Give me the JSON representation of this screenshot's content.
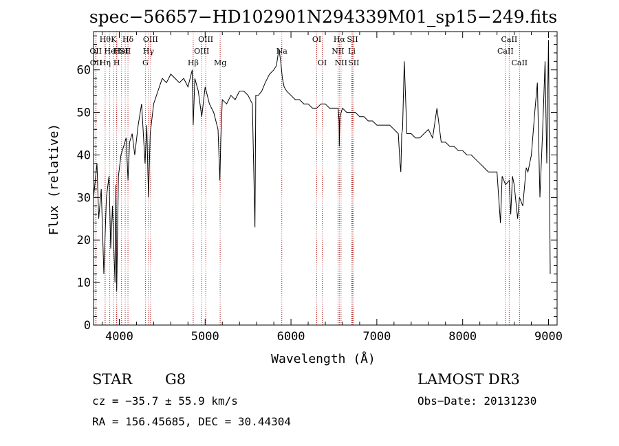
{
  "chart_data": {
    "type": "line",
    "title": "spec−56657−HD102901N294339M01_sp15−249.fits",
    "xlabel": "Wavelength (Å)",
    "ylabel": "Flux (relative)",
    "xlim": [
      3700,
      9100
    ],
    "ylim": [
      0,
      69
    ],
    "xticks": [
      4000,
      5000,
      6000,
      7000,
      8000,
      9000
    ],
    "yticks": [
      0,
      10,
      20,
      30,
      40,
      50,
      60
    ],
    "grid": false,
    "series": [
      {
        "color": "#000000",
        "x": [
          3700,
          3740,
          3760,
          3790,
          3820,
          3850,
          3880,
          3900,
          3920,
          3950,
          3960,
          3970,
          3990,
          4020,
          4050,
          4080,
          4101,
          4120,
          4150,
          4180,
          4220,
          4260,
          4300,
          4320,
          4340,
          4360,
          4400,
          4450,
          4500,
          4550,
          4600,
          4650,
          4700,
          4750,
          4800,
          4850,
          4861,
          4880,
          4920,
          4960,
          5000,
          5050,
          5100,
          5150,
          5172,
          5183,
          5200,
          5250,
          5300,
          5350,
          5400,
          5450,
          5500,
          5550,
          5580,
          5590,
          5620,
          5660,
          5700,
          5750,
          5800,
          5830,
          5860,
          5880,
          5890,
          5900,
          5920,
          5950,
          6000,
          6050,
          6100,
          6150,
          6200,
          6250,
          6300,
          6350,
          6400,
          6450,
          6500,
          6550,
          6560,
          6563,
          6570,
          6600,
          6650,
          6700,
          6750,
          6800,
          6850,
          6900,
          6950,
          7000,
          7050,
          7100,
          7150,
          7200,
          7250,
          7270,
          7280,
          7290,
          7300,
          7320,
          7350,
          7400,
          7450,
          7500,
          7550,
          7600,
          7650,
          7700,
          7750,
          7800,
          7850,
          7900,
          7950,
          8000,
          8050,
          8100,
          8150,
          8200,
          8250,
          8300,
          8350,
          8400,
          8420,
          8440,
          8460,
          8500,
          8542,
          8560,
          8580,
          8600,
          8640,
          8662,
          8700,
          8740,
          8760,
          8800,
          8840,
          8870,
          8900,
          8930,
          8960,
          8980,
          9000,
          9020
        ],
        "y": [
          30,
          38,
          25,
          32,
          12,
          30,
          35,
          18,
          28,
          10,
          33,
          8,
          35,
          40,
          42,
          44,
          34,
          43,
          45,
          40,
          47,
          52,
          38,
          47,
          30,
          45,
          52,
          55,
          58,
          57,
          59,
          58,
          57,
          58,
          56,
          60,
          47,
          58,
          55,
          49,
          56,
          52,
          50,
          46,
          34,
          44,
          53,
          52,
          54,
          53,
          55,
          55,
          54,
          52,
          23,
          54,
          54,
          55,
          57,
          59,
          60,
          61,
          65,
          62,
          60,
          58,
          56,
          55,
          54,
          53,
          53,
          52,
          52,
          51,
          51,
          52,
          52,
          51,
          51,
          51,
          48,
          42,
          49,
          51,
          50,
          50,
          50,
          49,
          49,
          48,
          48,
          47,
          47,
          47,
          47,
          46,
          45,
          38,
          36,
          45,
          46,
          62,
          45,
          45,
          44,
          44,
          45,
          46,
          44,
          51,
          43,
          43,
          42,
          42,
          41,
          41,
          40,
          40,
          39,
          38,
          37,
          36,
          36,
          36,
          30,
          24,
          35,
          33,
          34,
          26,
          35,
          33,
          25,
          30,
          28,
          37,
          36,
          40,
          50,
          57,
          30,
          45,
          62,
          38,
          67,
          12
        ]
      }
    ],
    "line_labels": [
      {
        "wavelength": 3835,
        "row": 0,
        "text": "Hθ"
      },
      {
        "wavelength": 3934,
        "row": 0,
        "text": "K"
      },
      {
        "wavelength": 4101,
        "row": 0,
        "text": "Hδ"
      },
      {
        "wavelength": 4364,
        "row": 0,
        "text": "OIII"
      },
      {
        "wavelength": 5007,
        "row": 0,
        "text": "OIII"
      },
      {
        "wavelength": 6300,
        "row": 0,
        "text": "OI"
      },
      {
        "wavelength": 6563,
        "row": 0,
        "text": "Hα"
      },
      {
        "wavelength": 6716,
        "row": 0,
        "text": "SII"
      },
      {
        "wavelength": 8542,
        "row": 0,
        "text": "CaII"
      },
      {
        "wavelength": 3726,
        "row": 1,
        "text": "OII"
      },
      {
        "wavelength": 3889,
        "row": 1,
        "text": "He"
      },
      {
        "wavelength": 3968,
        "row": 1,
        "text": "H"
      },
      {
        "wavelength": 4026,
        "row": 1,
        "text": "HeI"
      },
      {
        "wavelength": 4069,
        "row": 1,
        "text": "SII"
      },
      {
        "wavelength": 4340,
        "row": 1,
        "text": "Hγ"
      },
      {
        "wavelength": 4959,
        "row": 1,
        "text": "OIII"
      },
      {
        "wavelength": 5893,
        "row": 1,
        "text": "Na"
      },
      {
        "wavelength": 6548,
        "row": 1,
        "text": "NII"
      },
      {
        "wavelength": 6708,
        "row": 1,
        "text": "Li"
      },
      {
        "wavelength": 8498,
        "row": 1,
        "text": "CaII"
      },
      {
        "wavelength": 3729,
        "row": 2,
        "text": "OII"
      },
      {
        "wavelength": 3835,
        "row": 2,
        "text": "Hη"
      },
      {
        "wavelength": 3970,
        "row": 2,
        "text": "H"
      },
      {
        "wavelength": 4304,
        "row": 2,
        "text": "G"
      },
      {
        "wavelength": 4861,
        "row": 2,
        "text": "Hβ"
      },
      {
        "wavelength": 5175,
        "row": 2,
        "text": "Mg"
      },
      {
        "wavelength": 6364,
        "row": 2,
        "text": "OI"
      },
      {
        "wavelength": 6583,
        "row": 2,
        "text": "NII"
      },
      {
        "wavelength": 6731,
        "row": 2,
        "text": "SII"
      },
      {
        "wavelength": 8662,
        "row": 2,
        "text": "CaII"
      }
    ],
    "reference_line_color": "#b22222"
  },
  "footer": {
    "class_label": "STAR",
    "subclass": "G8",
    "survey": "LAMOST DR3",
    "redshift": "cz = −35.7 ± 55.9 km/s",
    "obs_date": "Obs−Date: 20131230",
    "coords": "RA = 156.45685, DEC =  30.44304"
  }
}
